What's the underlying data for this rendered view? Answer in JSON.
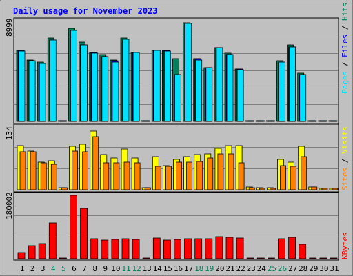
{
  "chart_data": [
    {
      "type": "bar",
      "title": "Daily usage for November 2023",
      "panel": "Pages / Files / Hits",
      "ymax_label": "8999",
      "ylim": [
        0,
        8999
      ],
      "categories": [
        "1",
        "2",
        "3",
        "4",
        "5",
        "6",
        "7",
        "8",
        "9",
        "10",
        "11",
        "12",
        "13",
        "14",
        "15",
        "16",
        "17",
        "18",
        "19",
        "20",
        "21",
        "22",
        "23",
        "24",
        "25",
        "26",
        "27",
        "28",
        "29",
        "30",
        "31"
      ],
      "weekend_days": [
        "4",
        "5",
        "11",
        "12",
        "18",
        "19",
        "25",
        "26"
      ],
      "series": [
        {
          "name": "Hits",
          "color": "#00805c",
          "values": [
            6500,
            5600,
            5400,
            7600,
            0,
            8500,
            7200,
            6300,
            6100,
            5600,
            7600,
            6300,
            0,
            6500,
            6500,
            5700,
            9000,
            5700,
            4900,
            6700,
            6200,
            4800,
            0,
            0,
            0,
            5500,
            7000,
            4400,
            0,
            0,
            0
          ]
        },
        {
          "name": "Files",
          "color": "#0000ff",
          "values": [
            6500,
            5500,
            5300,
            7400,
            0,
            8300,
            7000,
            6300,
            5900,
            5500,
            7400,
            6300,
            0,
            6500,
            6500,
            4300,
            8900,
            5700,
            4900,
            6700,
            6100,
            4800,
            0,
            0,
            0,
            5400,
            6800,
            4300,
            0,
            0,
            0
          ]
        },
        {
          "name": "Pages",
          "color": "#00e0ff",
          "values": [
            6400,
            5500,
            5300,
            7400,
            0,
            8300,
            7000,
            6200,
            5900,
            5400,
            7500,
            6300,
            0,
            6500,
            6400,
            4300,
            8900,
            5600,
            4900,
            6700,
            6100,
            4700,
            0,
            0,
            0,
            5400,
            6800,
            4300,
            0,
            0,
            0
          ]
        }
      ]
    },
    {
      "type": "bar",
      "panel": "Visits / Sites",
      "ymax_label": "134",
      "ylim": [
        0,
        134
      ],
      "series": [
        {
          "name": "Visits",
          "color": "#ffff00",
          "values": [
            70,
            61,
            44,
            46,
            3,
            68,
            72,
            92,
            55,
            50,
            64,
            50,
            3,
            52,
            38,
            48,
            52,
            55,
            57,
            65,
            70,
            70,
            4,
            3,
            3,
            48,
            43,
            68,
            4,
            2,
            2
          ]
        },
        {
          "name": "Sites",
          "color": "#ff8000",
          "values": [
            60,
            60,
            42,
            40,
            3,
            61,
            60,
            84,
            42,
            42,
            43,
            42,
            3,
            37,
            37,
            43,
            43,
            45,
            50,
            57,
            57,
            42,
            3,
            2,
            2,
            38,
            37,
            52,
            4,
            2,
            2
          ]
        }
      ]
    },
    {
      "type": "bar",
      "panel": "KBytes",
      "ymax_label": "180002",
      "ylim": [
        0,
        180002
      ],
      "series": [
        {
          "name": "KBytes",
          "color": "#ff0000",
          "values": [
            18000,
            38000,
            44000,
            102000,
            0,
            180000,
            142000,
            57000,
            52000,
            54000,
            57000,
            54000,
            0,
            58000,
            52000,
            54000,
            57000,
            57000,
            57000,
            62000,
            60000,
            58000,
            0,
            0,
            0,
            57000,
            60000,
            42000,
            0,
            0,
            0
          ]
        }
      ]
    }
  ],
  "legend": {
    "top": [
      {
        "label": "Pages",
        "color": "#00e0ff"
      },
      {
        "label": " / ",
        "color": "#000000"
      },
      {
        "label": "Files",
        "color": "#0000ff"
      },
      {
        "label": " / ",
        "color": "#000000"
      },
      {
        "label": "Hits",
        "color": "#00805c"
      }
    ],
    "mid": [
      {
        "label": "Sites",
        "color": "#ff8000"
      },
      {
        "label": " / ",
        "color": "#000000"
      },
      {
        "label": "Visits",
        "color": "#ffff00"
      }
    ],
    "bottom": [
      {
        "label": "KBytes",
        "color": "#ff0000"
      }
    ]
  },
  "colors": {
    "background": "#c0c0c0",
    "title": "#0000ff",
    "weekday_tick": "#000000",
    "weekend_tick": "#00805c"
  }
}
